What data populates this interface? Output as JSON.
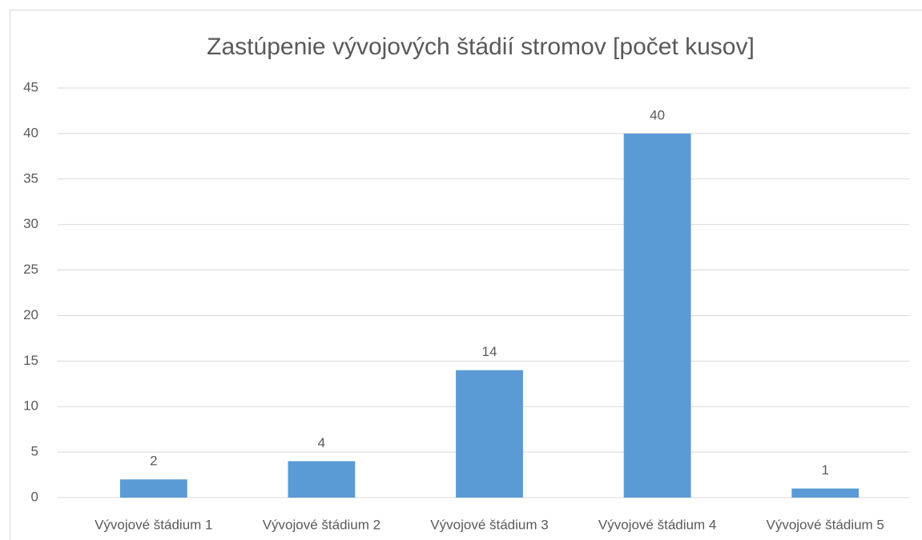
{
  "chart_data": {
    "type": "bar",
    "title": "Zastúpenie vývojových štádií stromov [počet kusov]",
    "categories": [
      "Vývojové štádium 1",
      "Vývojové štádium 2",
      "Vývojové štádium 3",
      "Vývojové štádium 4",
      "Vývojové štádium 5"
    ],
    "values": [
      2,
      4,
      14,
      40,
      1
    ],
    "color": "#5b9bd5",
    "ylim": [
      0,
      45
    ],
    "yticks": [
      0,
      5,
      10,
      15,
      20,
      25,
      30,
      35,
      40,
      45
    ],
    "grid": true,
    "data_labels": true
  }
}
